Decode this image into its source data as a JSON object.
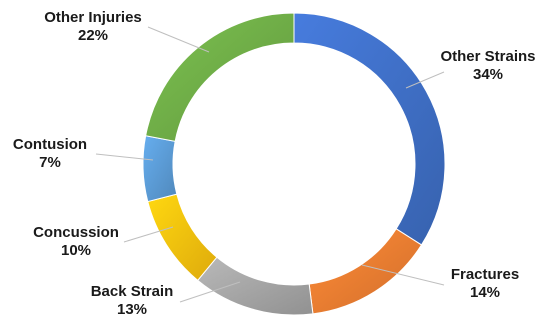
{
  "chart_data": {
    "type": "pie",
    "variant": "donut",
    "title": "",
    "legend": "none",
    "categories": [
      "Other Strains",
      "Fractures",
      "Back Strain",
      "Concussion",
      "Contusion",
      "Other Injuries"
    ],
    "values": [
      34,
      14,
      13,
      10,
      7,
      22
    ],
    "value_labels": [
      "34%",
      "14%",
      "13%",
      "10%",
      "7%",
      "22%"
    ],
    "colors": [
      "#3f6fc6",
      "#ee7d31",
      "#a5a5a5",
      "#fcc10e",
      "#5b9bd5",
      "#6fad47"
    ]
  }
}
